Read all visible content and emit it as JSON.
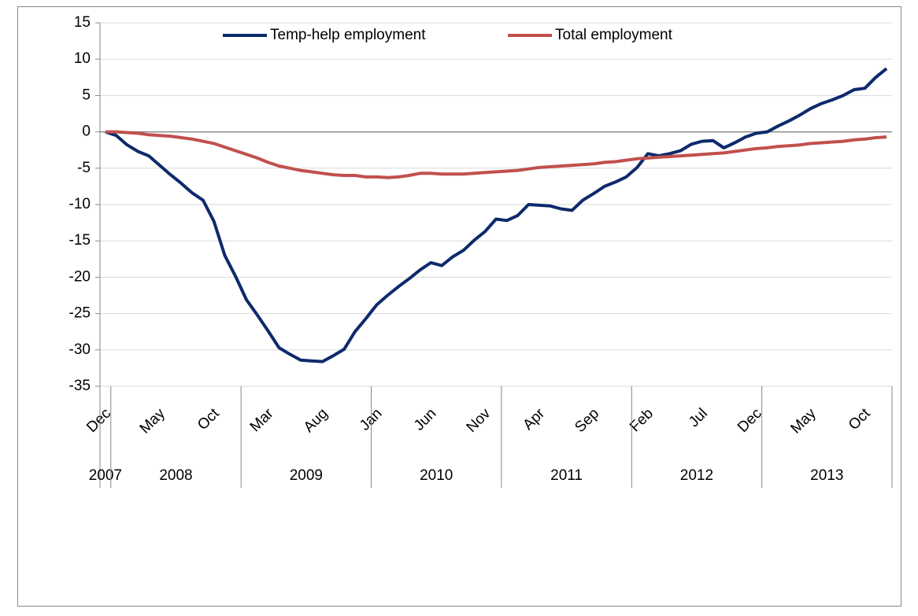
{
  "chart_data": {
    "type": "line",
    "categories": [
      "Dec",
      null,
      null,
      null,
      null,
      "May",
      null,
      null,
      null,
      null,
      "Oct",
      null,
      null,
      null,
      null,
      "Mar",
      null,
      null,
      null,
      null,
      "Aug",
      null,
      null,
      null,
      null,
      "Jan",
      null,
      null,
      null,
      null,
      "Jun",
      null,
      null,
      null,
      null,
      "Nov",
      null,
      null,
      null,
      null,
      "Apr",
      null,
      null,
      null,
      null,
      "Sep",
      null,
      null,
      null,
      null,
      "Feb",
      null,
      null,
      null,
      null,
      "Jul",
      null,
      null,
      null,
      null,
      "Dec",
      null,
      null,
      null,
      null,
      "May",
      null,
      null,
      null,
      null,
      "Oct",
      null,
      null
    ],
    "x_groups": [
      {
        "label": "2007",
        "start": 0,
        "end": 0
      },
      {
        "label": "2008",
        "start": 1,
        "end": 12
      },
      {
        "label": "2009",
        "start": 13,
        "end": 24
      },
      {
        "label": "2010",
        "start": 25,
        "end": 36
      },
      {
        "label": "2011",
        "start": 37,
        "end": 48
      },
      {
        "label": "2012",
        "start": 49,
        "end": 60
      },
      {
        "label": "2013",
        "start": 61,
        "end": 72
      }
    ],
    "series": [
      {
        "name": "Temp-help employment",
        "color": "#0d2a6b",
        "values": [
          0,
          -0.5,
          -1.8,
          -2.7,
          -3.3,
          -4.6,
          -5.9,
          -7.1,
          -8.4,
          -9.4,
          -12.3,
          -17.0,
          -19.9,
          -23.1,
          -25.2,
          -27.4,
          -29.7,
          -30.6,
          -31.4,
          -31.5,
          -31.6,
          -30.8,
          -29.9,
          -27.5,
          -25.7,
          -23.8,
          -22.5,
          -21.3,
          -20.2,
          -19.0,
          -18.0,
          -18.4,
          -17.2,
          -16.3,
          -14.9,
          -13.7,
          -12.0,
          -12.2,
          -11.5,
          -10.0,
          -10.1,
          -10.2,
          -10.6,
          -10.8,
          -9.4,
          -8.5,
          -7.5,
          -6.9,
          -6.2,
          -4.9,
          -3.0,
          -3.3,
          -3.0,
          -2.6,
          -1.7,
          -1.3,
          -1.2,
          -2.2,
          -1.5,
          -0.7,
          -0.2,
          0.0,
          0.8,
          1.5,
          2.3,
          3.2,
          3.9,
          4.4,
          5.0,
          5.8,
          6.0,
          7.5,
          8.7
        ]
      },
      {
        "name": "Total employment",
        "color": "#c0504d",
        "values": [
          0,
          0,
          -0.1,
          -0.2,
          -0.4,
          -0.5,
          -0.6,
          -0.8,
          -1.0,
          -1.3,
          -1.6,
          -2.1,
          -2.6,
          -3.1,
          -3.6,
          -4.2,
          -4.7,
          -5.0,
          -5.3,
          -5.5,
          -5.7,
          -5.9,
          -6.0,
          -6.0,
          -6.2,
          -6.2,
          -6.3,
          -6.2,
          -6.0,
          -5.7,
          -5.7,
          -5.8,
          -5.8,
          -5.8,
          -5.7,
          -5.6,
          -5.5,
          -5.4,
          -5.3,
          -5.1,
          -4.9,
          -4.8,
          -4.7,
          -4.6,
          -4.5,
          -4.4,
          -4.2,
          -4.1,
          -3.9,
          -3.7,
          -3.6,
          -3.5,
          -3.4,
          -3.3,
          -3.2,
          -3.1,
          -3.0,
          -2.9,
          -2.7,
          -2.5,
          -2.3,
          -2.2,
          -2.0,
          -1.9,
          -1.8,
          -1.6,
          -1.5,
          -1.4,
          -1.3,
          -1.1,
          -1.0,
          -0.8,
          -0.7
        ]
      }
    ],
    "ylim": [
      -35,
      15
    ],
    "yticks": [
      -35,
      -30,
      -25,
      -20,
      -15,
      -10,
      -5,
      0,
      5,
      10,
      15
    ],
    "grid": true,
    "legend": "top"
  }
}
